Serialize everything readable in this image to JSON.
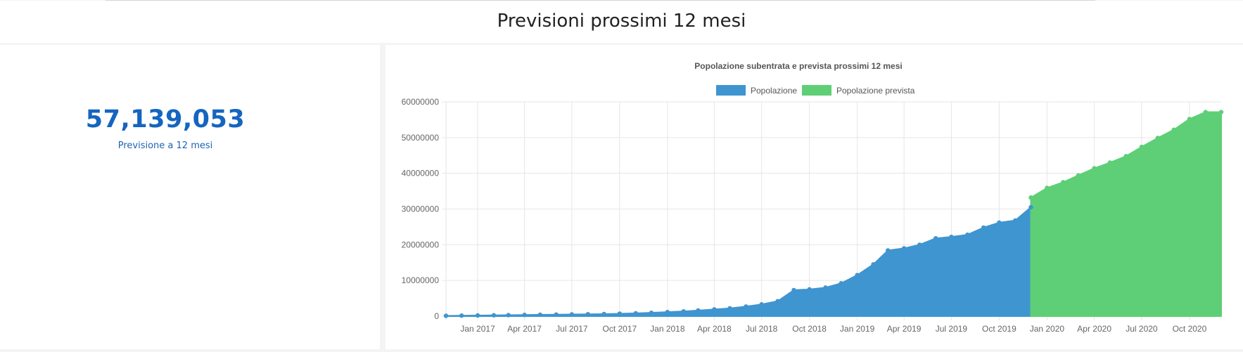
{
  "page": {
    "section_title": "Previsioni prossimi 12 mesi"
  },
  "kpi": {
    "value": "57,139,053",
    "label": "Previsione a 12 mesi"
  },
  "colors": {
    "popolazione": "#3f95d0",
    "popolazione_prevista": "#5ecf76",
    "kpi": "#1565c0"
  },
  "chart_data": {
    "type": "area",
    "title": "Popolazione subentrata e prevista prossimi 12 mesi",
    "legend": [
      "Popolazione",
      "Popolazione prevista"
    ],
    "legend_position": "top",
    "grid": true,
    "ylim": [
      0,
      60000000
    ],
    "y_ticks": [
      "60000000",
      "50000000",
      "40000000",
      "30000000",
      "20000000",
      "10000000",
      "0"
    ],
    "x_ticks": [
      "Jan 2017",
      "Apr 2017",
      "Jul 2017",
      "Oct 2017",
      "Jan 2018",
      "Apr 2018",
      "Jul 2018",
      "Oct 2018",
      "Jan 2019",
      "Apr 2019",
      "Jul 2019",
      "Oct 2019",
      "Jan 2020",
      "Apr 2020",
      "Jul 2020",
      "Oct 2020"
    ],
    "series": [
      {
        "name": "Popolazione",
        "x": [
          "2016-11-01",
          "2016-12-01",
          "2017-01-01",
          "2017-02-01",
          "2017-03-01",
          "2017-04-01",
          "2017-05-01",
          "2017-06-01",
          "2017-07-01",
          "2017-08-01",
          "2017-09-01",
          "2017-10-01",
          "2017-11-01",
          "2017-12-01",
          "2018-01-01",
          "2018-02-01",
          "2018-03-01",
          "2018-04-01",
          "2018-05-01",
          "2018-06-01",
          "2018-07-01",
          "2018-08-01",
          "2018-09-01",
          "2018-10-01",
          "2018-11-01",
          "2018-12-01",
          "2019-01-01",
          "2019-02-01",
          "2019-03-01",
          "2019-04-01",
          "2019-05-01",
          "2019-06-01",
          "2019-07-01",
          "2019-08-01",
          "2019-09-01",
          "2019-10-01",
          "2019-11-01",
          "2019-12-01"
        ],
        "values": [
          100000,
          150000,
          200000,
          250000,
          300000,
          350000,
          400000,
          450000,
          500000,
          550000,
          600000,
          700000,
          800000,
          950000,
          1150000,
          1350000,
          1600000,
          1900000,
          2200000,
          2700000,
          3300000,
          4200000,
          7300000,
          7500000,
          8000000,
          9200000,
          11500000,
          14500000,
          18400000,
          19000000,
          20000000,
          21800000,
          22200000,
          22800000,
          24800000,
          26200000,
          26800000,
          30500000
        ]
      },
      {
        "name": "Popolazione prevista",
        "x": [
          "2019-12-01",
          "2020-01-01",
          "2020-02-01",
          "2020-03-01",
          "2020-04-01",
          "2020-05-01",
          "2020-06-01",
          "2020-07-01",
          "2020-08-01",
          "2020-09-01",
          "2020-10-01",
          "2020-11-01",
          "2020-12-01"
        ],
        "values": [
          33200000,
          35900000,
          37500000,
          39400000,
          41400000,
          43000000,
          44800000,
          47400000,
          49900000,
          52200000,
          55200000,
          57139053,
          57139053
        ]
      }
    ]
  }
}
